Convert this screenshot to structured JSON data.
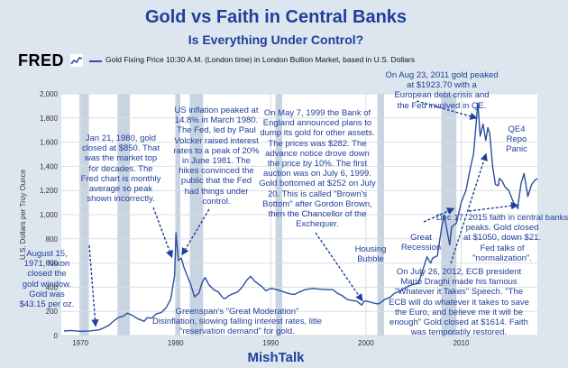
{
  "header": {
    "title": "Gold vs Faith in Central Banks",
    "subtitle": "Is Everything Under Control?",
    "source_logo": "FRED",
    "legend_label": "Gold Fixing Price 10:30 A.M. (London time) in London Bullion Market, based in U.S. Dollars"
  },
  "footer": {
    "credit": "MishTalk"
  },
  "chart_data": {
    "type": "line",
    "title": "Gold vs Faith in Central Banks",
    "subtitle": "Is Everything Under Control?",
    "xlabel": "",
    "ylabel": "U.S. Dollars per Troy Ounce",
    "xlim": [
      1968,
      2018
    ],
    "ylim": [
      0,
      2000
    ],
    "y_ticks": [
      0,
      200,
      400,
      600,
      800,
      1000,
      1200,
      1400,
      1600,
      1800,
      2000
    ],
    "y_tick_labels": [
      "0",
      "200",
      "400",
      "600",
      "800",
      "1,000",
      "1,200",
      "1,400",
      "1,600",
      "1,800",
      "2,000"
    ],
    "x_ticks": [
      1970,
      1980,
      1990,
      2000,
      2010
    ],
    "x_tick_labels": [
      "1970",
      "1980",
      "1990",
      "2000",
      "2010"
    ],
    "grid": true,
    "recessions": [
      [
        1969.9,
        1970.9
      ],
      [
        1973.9,
        1975.2
      ],
      [
        1980.0,
        1980.5
      ],
      [
        1981.5,
        1982.9
      ],
      [
        1990.5,
        1991.2
      ],
      [
        2001.2,
        2001.9
      ],
      [
        2007.9,
        2009.5
      ]
    ],
    "series": [
      {
        "name": "Gold Fixing Price 10:30 A.M. (London time) in London Bullion Market, based in U.S. Dollars",
        "color": "#2b4fa0",
        "x": [
          1968.3,
          1969,
          1970,
          1971,
          1971.6,
          1972,
          1972.5,
          1973,
          1973.5,
          1974,
          1974.5,
          1974.95,
          1975.5,
          1976,
          1976.7,
          1977,
          1977.5,
          1978,
          1978.5,
          1979,
          1979.5,
          1979.9,
          1980.05,
          1980.3,
          1980.6,
          1980.9,
          1981.2,
          1981.6,
          1982,
          1982.45,
          1982.8,
          1983.1,
          1983.5,
          1984,
          1984.5,
          1985,
          1985.2,
          1985.6,
          1986,
          1986.5,
          1987,
          1987.5,
          1987.9,
          1988.3,
          1988.8,
          1989,
          1989.5,
          1990,
          1990.6,
          1991,
          1991.6,
          1992,
          1992.5,
          1993,
          1993.6,
          1994,
          1994.5,
          1995,
          1996,
          1996.5,
          1997,
          1997.5,
          1998,
          1998.5,
          1999,
          1999.56,
          1999.8,
          2000,
          2000.5,
          2001,
          2001.3,
          2001.5,
          2002,
          2002.5,
          2003,
          2003.5,
          2004,
          2004.5,
          2005,
          2005.5,
          2006,
          2006.4,
          2006.8,
          2007,
          2007.5,
          2008,
          2008.2,
          2008.8,
          2009,
          2009.5,
          2010,
          2010.5,
          2011,
          2011.3,
          2011.6,
          2011.75,
          2012,
          2012.3,
          2012.58,
          2012.8,
          2013,
          2013.3,
          2013.6,
          2013.9,
          2014,
          2014.3,
          2014.6,
          2015,
          2015.5,
          2015.96,
          2016,
          2016.3,
          2016.6,
          2016.9,
          2017,
          2017.4,
          2017.7,
          2018
        ],
        "y": [
          37,
          42,
          35,
          38,
          43.15,
          48,
          65,
          85,
          120,
          150,
          160,
          185,
          165,
          140,
          117,
          147,
          145,
          180,
          190,
          230,
          300,
          500,
          850,
          620,
          640,
          560,
          500,
          420,
          320,
          350,
          440,
          480,
          420,
          380,
          360,
          310,
          305,
          330,
          345,
          360,
          400,
          460,
          490,
          450,
          420,
          410,
          370,
          390,
          380,
          370,
          355,
          345,
          340,
          360,
          380,
          385,
          390,
          385,
          380,
          380,
          350,
          330,
          300,
          290,
          285,
          252,
          285,
          285,
          275,
          265,
          262,
          270,
          300,
          315,
          350,
          365,
          390,
          410,
          425,
          430,
          550,
          650,
          600,
          640,
          660,
          920,
          1000,
          750,
          900,
          930,
          1100,
          1200,
          1400,
          1500,
          1780,
          1923.7,
          1650,
          1750,
          1614,
          1720,
          1670,
          1400,
          1250,
          1240,
          1300,
          1280,
          1230,
          1200,
          1100,
          1050,
          1100,
          1260,
          1340,
          1200,
          1150,
          1250,
          1280,
          1300
        ]
      }
    ],
    "annotations": [
      "Jan 21, 1980, gold closed at $850. That was the market top for decades. The Fred chart is monthly average so peak shown incorrectly.",
      "US inflation peaked at 14.8% in March 1980. The Fed, led by Paul Volcker raised interest rates to a peak of 20% in June 1981. The hikes convinced the public that the Fed had things under control.",
      "On May 7, 1999 the Bank of England announced plans to dump its gold for other assets. The prices was $282. The advance notice drove down the price by 10%. The first auction was on July 6, 1999. Gold bottomed at $252 on July 20. This is called \"Brown's Bottom\" after Gordon Brown, then the Chancellor of the Exchequer.",
      "On Aug 23, 2011 gold peaked at $1923.70 with a European debt crisis and the Fed involved in QE.",
      "QE4 Repo Panic",
      "August 15, 1971, Nixon closed the gold window. Gold was $43.15 per oz.",
      "Housing Bubble",
      "Great Recession",
      "Dec 17, 2015 faith in central banks peaks. Gold closed at $1050, down $21. Fed talks of \"normalization\".",
      "Greenspan's \"Great Moderation\" Disinflation, slowing falling interest rates, litle \"reservation demand\" for gold.",
      "On July 26, 2012, ECB president Mario Draghi made his famous \"Whatever it Takes\" Speech. \"The ECB will do whatever it takes to save the Euro, and believe me it will be enough\" Gold closed at $1614. Faith was temporatily restored."
    ]
  }
}
